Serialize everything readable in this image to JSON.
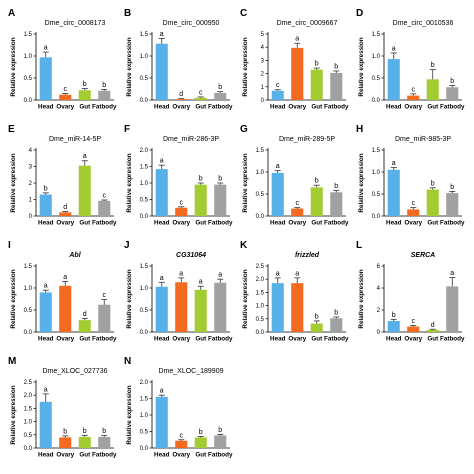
{
  "colors": {
    "Head": "#58b0e8",
    "Ovary": "#f26b21",
    "Gut": "#a3cc32",
    "Fatbody": "#9fa1a3"
  },
  "chart_data": [
    {
      "letter": "A",
      "title": "Dme_circ_0008173",
      "italic": false,
      "type": "bar",
      "categories": [
        "Head",
        "Ovary",
        "Gut",
        "Fatbody"
      ],
      "ylabel": "Relative expression",
      "ylim": [
        0,
        1.5
      ],
      "yticks": [
        0.0,
        0.5,
        1.0,
        1.5
      ],
      "values": [
        0.97,
        0.12,
        0.22,
        0.21
      ],
      "errors": [
        0.12,
        0.03,
        0.04,
        0.03
      ],
      "sig": [
        "a",
        "c",
        "b",
        "b"
      ]
    },
    {
      "letter": "B",
      "title": "Dme_circ_000950",
      "italic": false,
      "type": "bar",
      "categories": [
        "Head",
        "Ovary",
        "Gut",
        "Fatbody"
      ],
      "ylabel": "Relative expression",
      "ylim": [
        0,
        1.5
      ],
      "yticks": [
        0.0,
        0.5,
        1.0,
        1.5
      ],
      "values": [
        1.28,
        0.02,
        0.05,
        0.16
      ],
      "errors": [
        0.12,
        0.01,
        0.02,
        0.03
      ],
      "sig": [
        "a",
        "d",
        "c",
        "b"
      ]
    },
    {
      "letter": "C",
      "title": "Dme_circ_0009667",
      "italic": false,
      "type": "bar",
      "categories": [
        "Head",
        "Ovary",
        "Gut",
        "Fatbody"
      ],
      "ylabel": "Relative expression",
      "ylim": [
        0,
        5
      ],
      "yticks": [
        0,
        1,
        2,
        3,
        4,
        5
      ],
      "values": [
        0.7,
        3.95,
        2.3,
        2.05
      ],
      "errors": [
        0.08,
        0.35,
        0.12,
        0.15
      ],
      "sig": [
        "c",
        "a",
        "b",
        "b"
      ]
    },
    {
      "letter": "D",
      "title": "Dme_circ_0010536",
      "italic": false,
      "type": "bar",
      "categories": [
        "Head",
        "Ovary",
        "Gut",
        "Fatbody"
      ],
      "ylabel": "Relative expression",
      "ylim": [
        0,
        1.5
      ],
      "yticks": [
        0.0,
        0.5,
        1.0,
        1.5
      ],
      "values": [
        0.93,
        0.1,
        0.47,
        0.29
      ],
      "errors": [
        0.14,
        0.04,
        0.22,
        0.04
      ],
      "sig": [
        "a",
        "c",
        "b",
        "b"
      ]
    },
    {
      "letter": "E",
      "title": "Dme_miR-14-5P",
      "italic": false,
      "type": "bar",
      "categories": [
        "Head",
        "Ovary",
        "Gut",
        "Fatbody"
      ],
      "ylabel": "Relative expression",
      "ylim": [
        0,
        4
      ],
      "yticks": [
        0,
        1,
        2,
        3,
        4
      ],
      "values": [
        1.3,
        0.22,
        3.05,
        0.92
      ],
      "errors": [
        0.1,
        0.06,
        0.3,
        0.05
      ],
      "sig": [
        "b",
        "d",
        "a",
        "c"
      ]
    },
    {
      "letter": "F",
      "title": "Dme_miR-286-3P",
      "italic": false,
      "type": "bar",
      "categories": [
        "Head",
        "Ovary",
        "Gut",
        "Fatbody"
      ],
      "ylabel": "Relative expression",
      "ylim": [
        0,
        2.0
      ],
      "yticks": [
        0.0,
        0.5,
        1.0,
        1.5,
        2.0
      ],
      "values": [
        1.42,
        0.25,
        0.95,
        0.95
      ],
      "errors": [
        0.12,
        0.03,
        0.05,
        0.05
      ],
      "sig": [
        "a",
        "c",
        "b",
        "b"
      ]
    },
    {
      "letter": "G",
      "title": "Dme_miR-289-5P",
      "italic": false,
      "type": "bar",
      "categories": [
        "Head",
        "Ovary",
        "Gut",
        "Fatbody"
      ],
      "ylabel": "Relative expression",
      "ylim": [
        0,
        1.5
      ],
      "yticks": [
        0.0,
        0.5,
        1.0,
        1.5
      ],
      "values": [
        0.98,
        0.17,
        0.65,
        0.54
      ],
      "errors": [
        0.05,
        0.02,
        0.05,
        0.04
      ],
      "sig": [
        "a",
        "c",
        "b",
        "b"
      ]
    },
    {
      "letter": "H",
      "title": "Dme_miR-985-3P",
      "italic": false,
      "type": "bar",
      "categories": [
        "Head",
        "Ovary",
        "Gut",
        "Fatbody"
      ],
      "ylabel": "Relative expression",
      "ylim": [
        0,
        1.5
      ],
      "yticks": [
        0.0,
        0.5,
        1.0,
        1.5
      ],
      "values": [
        1.05,
        0.15,
        0.6,
        0.52
      ],
      "errors": [
        0.05,
        0.04,
        0.04,
        0.04
      ],
      "sig": [
        "a",
        "c",
        "b",
        "b"
      ]
    },
    {
      "letter": "I",
      "title": "Abl",
      "italic": true,
      "type": "bar",
      "categories": [
        "Head",
        "Ovary",
        "Gut",
        "Fatbody"
      ],
      "ylabel": "Relative expression",
      "ylim": [
        0,
        1.5
      ],
      "yticks": [
        0.0,
        0.5,
        1.0,
        1.5
      ],
      "values": [
        0.9,
        1.05,
        0.27,
        0.62
      ],
      "errors": [
        0.05,
        0.1,
        0.04,
        0.12
      ],
      "sig": [
        "a",
        "a",
        "d",
        "c"
      ]
    },
    {
      "letter": "J",
      "title": "CG31064",
      "italic": true,
      "type": "bar",
      "categories": [
        "Head",
        "Ovary",
        "Gut",
        "Fatbody"
      ],
      "ylabel": "Relative expression",
      "ylim": [
        0,
        1.5
      ],
      "yticks": [
        0.0,
        0.5,
        1.0,
        1.5
      ],
      "values": [
        1.03,
        1.13,
        0.96,
        1.12
      ],
      "errors": [
        0.1,
        0.1,
        0.08,
        0.08
      ],
      "sig": [
        "a",
        "a",
        "a",
        "a"
      ]
    },
    {
      "letter": "K",
      "title": "frizzled",
      "italic": true,
      "type": "bar",
      "categories": [
        "Head",
        "Ovary",
        "Gut",
        "Fatbody"
      ],
      "ylabel": "Relative expression",
      "ylim": [
        0,
        2.5
      ],
      "yticks": [
        0.0,
        0.5,
        1.0,
        1.5,
        2.0,
        2.5
      ],
      "values": [
        1.85,
        1.85,
        0.32,
        0.52
      ],
      "errors": [
        0.2,
        0.2,
        0.1,
        0.05
      ],
      "sig": [
        "a",
        "a",
        "b",
        "b"
      ]
    },
    {
      "letter": "L",
      "title": "SERCA",
      "italic": true,
      "type": "bar",
      "categories": [
        "Head",
        "Ovary",
        "Gut",
        "Fatbody"
      ],
      "ylabel": "Relative expression",
      "ylim": [
        0,
        6
      ],
      "yticks": [
        0,
        2,
        4,
        6
      ],
      "values": [
        1.0,
        0.5,
        0.2,
        4.15
      ],
      "errors": [
        0.15,
        0.1,
        0.05,
        0.8
      ],
      "sig": [
        "b",
        "c",
        "d",
        "a"
      ]
    },
    {
      "letter": "M",
      "title": "Dme_XLOC_027736",
      "italic": false,
      "type": "bar",
      "categories": [
        "Head",
        "Ovary",
        "Gut",
        "Fatbody"
      ],
      "ylabel": "Relative expression",
      "ylim": [
        0,
        2.5
      ],
      "yticks": [
        0.0,
        0.5,
        1.0,
        1.5,
        2.0,
        2.5
      ],
      "values": [
        1.75,
        0.4,
        0.42,
        0.42
      ],
      "errors": [
        0.3,
        0.06,
        0.06,
        0.06
      ],
      "sig": [
        "a",
        "b",
        "b",
        "b"
      ]
    },
    {
      "letter": "N",
      "title": "Dme_XLOC_189909",
      "italic": false,
      "type": "bar",
      "categories": [
        "Head",
        "Ovary",
        "Gut",
        "Fatbody"
      ],
      "ylabel": "Relative expression",
      "ylim": [
        0,
        2.0
      ],
      "yticks": [
        0.0,
        0.5,
        1.0,
        1.5,
        2.0
      ],
      "values": [
        1.55,
        0.22,
        0.32,
        0.38
      ],
      "errors": [
        0.05,
        0.03,
        0.03,
        0.03
      ],
      "sig": [
        "a",
        "c",
        "b",
        "b"
      ]
    }
  ]
}
